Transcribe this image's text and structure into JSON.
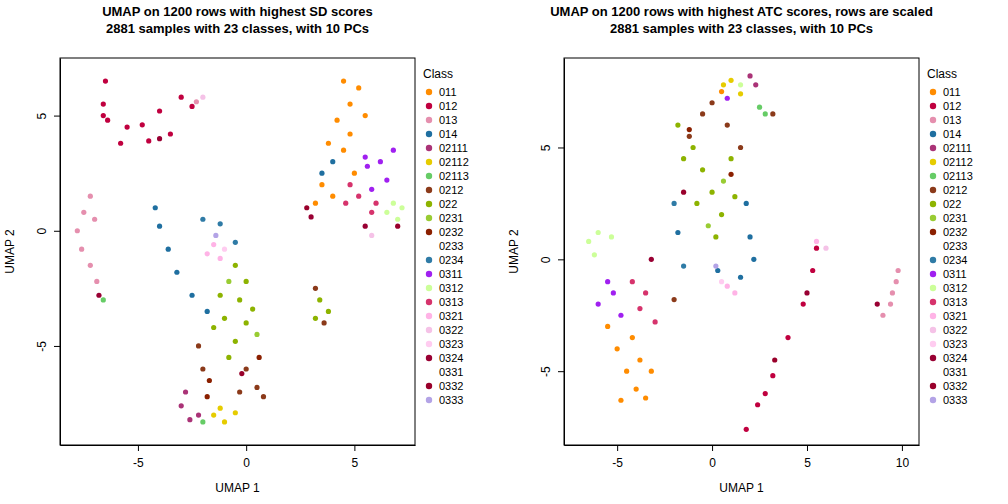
{
  "chart_data": [
    {
      "type": "scatter",
      "title": "UMAP on 1200 rows with highest SD scores",
      "subtitle": "2881 samples with 23 classes, with 10 PCs",
      "x_label": "UMAP 1",
      "y_label": "UMAP 2",
      "legend_title": "Class",
      "legend": "right",
      "xlim": [
        -8.6,
        7.8
      ],
      "ylim": [
        -9.3,
        7.5
      ],
      "xticks": [
        -5,
        0,
        5
      ],
      "yticks": [
        -5,
        0,
        5
      ],
      "series": [
        {
          "name": "011",
          "color": "#FF8C00",
          "x": [
            4.5,
            5.2,
            4.8,
            5.5,
            4.2,
            3.8,
            4.5,
            5.0,
            3.5,
            4.0,
            3.2,
            4.8
          ],
          "y": [
            6.5,
            6.2,
            5.5,
            5.0,
            4.8,
            3.8,
            3.5,
            2.5,
            2.0,
            1.5,
            1.2,
            4.2
          ]
        },
        {
          "name": "012",
          "color": "#C0003F",
          "x": [
            -6.5,
            -6.6,
            -6.4,
            -5.5,
            -4.8,
            -4.0,
            -3.0,
            -2.5,
            -3.5,
            -4.5,
            -5.8,
            -6.6
          ],
          "y": [
            6.5,
            5.5,
            4.8,
            4.5,
            4.6,
            5.2,
            5.8,
            5.4,
            4.2,
            3.9,
            3.8,
            5.0
          ]
        },
        {
          "name": "013",
          "color": "#E58FAE",
          "x": [
            -7.2,
            -7.5,
            -7.8,
            -7.6,
            -7.2,
            -6.9,
            -7.0,
            -2.3
          ],
          "y": [
            1.5,
            0.8,
            0.0,
            -0.8,
            -1.5,
            -2.2,
            0.5,
            5.6
          ]
        },
        {
          "name": "014",
          "color": "#1F6FA0",
          "x": [
            -4.2,
            -4.0,
            -3.6,
            -3.2,
            -2.5,
            -1.8,
            4.0,
            3.5
          ],
          "y": [
            1.0,
            0.2,
            -0.8,
            -1.8,
            -2.8,
            -3.5,
            3.0,
            2.5
          ]
        },
        {
          "name": "02111",
          "color": "#AA3377",
          "x": [
            -3.0,
            -2.6,
            -2.2,
            -2.8
          ],
          "y": [
            -7.6,
            -8.2,
            -8.0,
            -7.0
          ]
        },
        {
          "name": "02112",
          "color": "#E6CC00",
          "x": [
            -1.5,
            -1.0,
            -0.5,
            -1.2
          ],
          "y": [
            -8.0,
            -8.3,
            -7.9,
            -7.7
          ]
        },
        {
          "name": "02113",
          "color": "#66CC66",
          "x": [
            -2.0,
            -6.6
          ],
          "y": [
            -8.3,
            -3.0
          ]
        },
        {
          "name": "0212",
          "color": "#8B3A1A",
          "x": [
            0.0,
            0.5,
            0.8,
            -0.3,
            -2.2,
            -2.0,
            3.2,
            3.6
          ],
          "y": [
            -6.0,
            -6.8,
            -7.2,
            -7.0,
            -5.0,
            -6.0,
            -2.5,
            -4.0
          ]
        },
        {
          "name": "022",
          "color": "#8DB300",
          "x": [
            -0.5,
            0.0,
            -0.3,
            -1.0,
            0.0,
            -0.5,
            -1.2,
            0.3,
            -0.8,
            -1.5,
            3.4,
            3.8,
            3.2
          ],
          "y": [
            -1.5,
            -2.2,
            -3.0,
            -3.8,
            -4.0,
            -4.8,
            -2.8,
            -3.4,
            -5.5,
            -4.2,
            -3.0,
            -3.5,
            -3.8
          ]
        },
        {
          "name": "0231",
          "color": "#99CC33",
          "x": [
            -0.8,
            0.5
          ],
          "y": [
            -2.2,
            -4.5
          ]
        },
        {
          "name": "0232",
          "color": "#8B2000",
          "x": [
            -1.7,
            -1.8,
            0.6
          ],
          "y": [
            -6.5,
            -7.2,
            -5.5
          ]
        },
        {
          "name": "0233",
          "color": "#FFFFFF",
          "x": [],
          "y": []
        },
        {
          "name": "0234",
          "color": "#2F7BA6",
          "x": [
            -2.0,
            -1.2,
            -0.5
          ],
          "y": [
            0.5,
            0.3,
            -0.5
          ]
        },
        {
          "name": "0311",
          "color": "#A020F0",
          "x": [
            5.5,
            6.2,
            6.5,
            5.8,
            6.8,
            5.6
          ],
          "y": [
            3.2,
            3.0,
            2.2,
            1.8,
            3.5,
            2.8
          ]
        },
        {
          "name": "0312",
          "color": "#CCFF99",
          "x": [
            6.5,
            7.0,
            6.8,
            7.2
          ],
          "y": [
            0.8,
            0.5,
            1.2,
            1.0
          ]
        },
        {
          "name": "0313",
          "color": "#D6336C",
          "x": [
            4.6,
            5.2,
            5.8,
            4.8,
            6.0
          ],
          "y": [
            1.2,
            1.5,
            0.8,
            2.0,
            1.2
          ]
        },
        {
          "name": "0321",
          "color": "#FFB3E6",
          "x": [
            -1.5,
            -1.2,
            -1.8
          ],
          "y": [
            -0.6,
            -1.2,
            -1.0
          ]
        },
        {
          "name": "0322",
          "color": "#F5C2E7",
          "x": [
            -2.0,
            5.8
          ],
          "y": [
            5.8,
            -0.2
          ]
        },
        {
          "name": "0323",
          "color": "#FFCCF0",
          "x": [
            -1.0
          ],
          "y": [
            -0.8
          ]
        },
        {
          "name": "0324",
          "color": "#990033",
          "x": [
            -6.8,
            -4.0,
            5.5,
            3.0
          ],
          "y": [
            -2.8,
            4.0,
            0.2,
            0.6
          ]
        },
        {
          "name": "0331",
          "color": "#FFFFFF",
          "x": [],
          "y": []
        },
        {
          "name": "0332",
          "color": "#99002B",
          "x": [
            7.0,
            2.8,
            -0.2
          ],
          "y": [
            0.2,
            1.0,
            -6.2
          ]
        },
        {
          "name": "0333",
          "color": "#B3A3E6",
          "x": [
            -1.4
          ],
          "y": [
            -0.2
          ]
        }
      ]
    },
    {
      "type": "scatter",
      "title": "UMAP on 1200 rows with highest ATC scores, rows are scaled",
      "subtitle": "2881 samples with 23 classes, with 10 PCs",
      "x_label": "UMAP 1",
      "y_label": "UMAP 2",
      "legend_title": "Class",
      "legend": "right",
      "xlim": [
        -7.8,
        10.9
      ],
      "ylim": [
        -8.3,
        9.0
      ],
      "xticks": [
        -5,
        0,
        5,
        10
      ],
      "yticks": [
        -5,
        0,
        5
      ],
      "series": [
        {
          "name": "011",
          "color": "#FF8C00",
          "x": [
            -5.5,
            -5.0,
            -4.5,
            -4.0,
            -3.5,
            -4.8,
            -3.8,
            -4.2,
            -3.2,
            0.5
          ],
          "y": [
            -3.0,
            -4.0,
            -5.0,
            -5.8,
            -6.2,
            -6.3,
            -4.5,
            -3.5,
            -5.0,
            7.5
          ]
        },
        {
          "name": "012",
          "color": "#C0003F",
          "x": [
            1.8,
            2.4,
            3.2,
            4.0,
            4.8,
            5.3,
            5.5,
            2.8
          ],
          "y": [
            -7.6,
            -6.5,
            -5.2,
            -3.5,
            -2.0,
            -0.5,
            0.5,
            -6.0
          ]
        },
        {
          "name": "013",
          "color": "#E58FAE",
          "x": [
            9.0,
            9.5,
            9.8,
            9.4,
            9.7
          ],
          "y": [
            -2.5,
            -1.5,
            -0.5,
            -2.0,
            -1.0
          ]
        },
        {
          "name": "014",
          "color": "#1F6FA0",
          "x": [
            1.8,
            2.0,
            2.2,
            1.5,
            0.3,
            -1.8
          ],
          "y": [
            2.5,
            1.0,
            0.0,
            -0.8,
            -0.5,
            1.2
          ]
        },
        {
          "name": "02111",
          "color": "#AA3377",
          "x": [
            2.0,
            2.3
          ],
          "y": [
            8.2,
            7.8
          ]
        },
        {
          "name": "02112",
          "color": "#E6CC00",
          "x": [
            1.0,
            1.5,
            0.6
          ],
          "y": [
            8.0,
            7.4,
            7.8
          ]
        },
        {
          "name": "02113",
          "color": "#66CC66",
          "x": [
            2.5,
            2.8
          ],
          "y": [
            6.8,
            6.5
          ]
        },
        {
          "name": "0212",
          "color": "#8B3A1A",
          "x": [
            -0.5,
            0.0,
            0.8,
            -1.2,
            1.5,
            3.2,
            -2.0
          ],
          "y": [
            6.5,
            7.0,
            6.0,
            5.5,
            5.0,
            6.5,
            -1.8
          ]
        },
        {
          "name": "022",
          "color": "#8DB300",
          "x": [
            -1.8,
            -1.0,
            -0.5,
            0.0,
            0.5,
            -0.8,
            1.2,
            0.2,
            -1.5,
            1.0
          ],
          "y": [
            6.0,
            5.0,
            4.0,
            3.0,
            2.0,
            2.5,
            2.8,
            1.0,
            4.5,
            4.5
          ]
        },
        {
          "name": "0231",
          "color": "#99CC33",
          "x": [
            -0.2,
            0.6
          ],
          "y": [
            1.5,
            3.5
          ]
        },
        {
          "name": "0232",
          "color": "#8B2000",
          "x": [
            1.0,
            -1.2
          ],
          "y": [
            3.8,
            5.8
          ]
        },
        {
          "name": "0233",
          "color": "#FFFFFF",
          "x": [],
          "y": []
        },
        {
          "name": "0234",
          "color": "#2F7BA6",
          "x": [
            -2.0,
            -1.5
          ],
          "y": [
            2.5,
            -0.3
          ]
        },
        {
          "name": "0311",
          "color": "#A020F0",
          "x": [
            -5.5,
            -6.0,
            -4.8,
            -5.2,
            0.8
          ],
          "y": [
            -1.0,
            -2.0,
            -2.5,
            -1.5,
            7.2
          ]
        },
        {
          "name": "0312",
          "color": "#CCFF99",
          "x": [
            -6.5,
            -6.0,
            -5.3,
            -6.2,
            1.5
          ],
          "y": [
            0.8,
            1.2,
            1.0,
            0.2,
            7.8
          ]
        },
        {
          "name": "0313",
          "color": "#D6336C",
          "x": [
            -3.5,
            -3.8,
            -4.2,
            -3.0
          ],
          "y": [
            -1.5,
            -2.2,
            -1.0,
            -2.8
          ]
        },
        {
          "name": "0321",
          "color": "#FFB3E6",
          "x": [
            0.8,
            1.2,
            5.5
          ],
          "y": [
            -1.2,
            -1.5,
            0.8
          ]
        },
        {
          "name": "0322",
          "color": "#F5C2E7",
          "x": [
            6.0
          ],
          "y": [
            0.5
          ]
        },
        {
          "name": "0323",
          "color": "#FFCCF0",
          "x": [
            0.5
          ],
          "y": [
            -1.0
          ]
        },
        {
          "name": "0324",
          "color": "#990033",
          "x": [
            -3.2,
            5.0,
            8.7
          ],
          "y": [
            0.0,
            -1.5,
            -2.0
          ]
        },
        {
          "name": "0331",
          "color": "#FFFFFF",
          "x": [],
          "y": []
        },
        {
          "name": "0332",
          "color": "#99002B",
          "x": [
            -1.5,
            3.3
          ],
          "y": [
            3.0,
            -4.5
          ]
        },
        {
          "name": "0333",
          "color": "#B3A3E6",
          "x": [
            0.2
          ],
          "y": [
            -0.3
          ]
        }
      ]
    }
  ]
}
